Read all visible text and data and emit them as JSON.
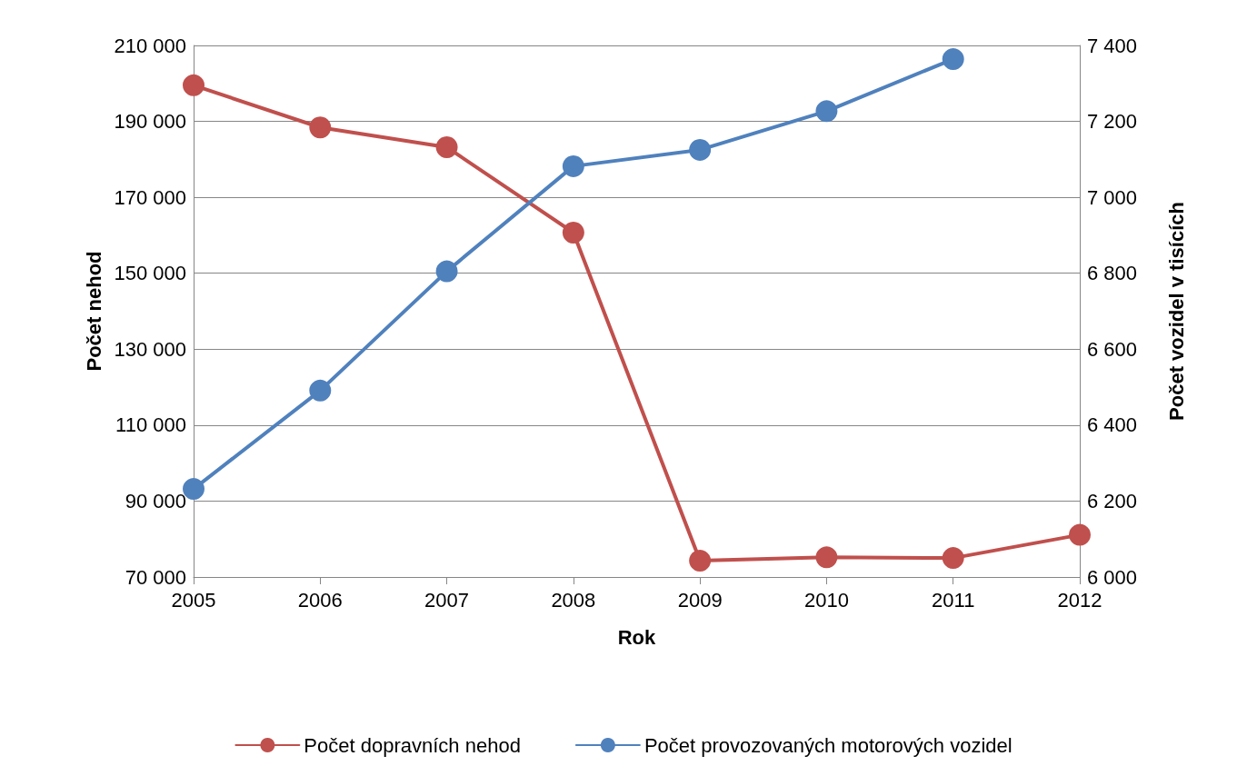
{
  "chart_data": {
    "type": "line",
    "xlabel": "Rok",
    "ylabel": "Počet nehod",
    "y2label": "Počet vozidel v tisících",
    "categories": [
      "2005",
      "2006",
      "2007",
      "2008",
      "2009",
      "2010",
      "2011",
      "2012"
    ],
    "series": [
      {
        "name": "Počet dopravních nehod",
        "color": "#c0504d",
        "values": [
          199500,
          188400,
          183200,
          160700,
          74300,
          75200,
          75000,
          81100
        ]
      },
      {
        "name": "Počet provozovaných motorových vozidel",
        "color": "#4f81bd",
        "axis": "y2",
        "values": [
          6232,
          6491,
          6805,
          7082,
          7125,
          7227,
          7364,
          null
        ]
      }
    ],
    "ylim": [
      70000,
      210000
    ],
    "yticks": [
      {
        "value": 70000,
        "label": "70 000"
      },
      {
        "value": 90000,
        "label": "90 000"
      },
      {
        "value": 110000,
        "label": "110 000"
      },
      {
        "value": 130000,
        "label": "130 000"
      },
      {
        "value": 150000,
        "label": "150 000"
      },
      {
        "value": 170000,
        "label": "170 000"
      },
      {
        "value": 190000,
        "label": "190 000"
      },
      {
        "value": 210000,
        "label": "210 000"
      }
    ],
    "y2lim": [
      6000,
      7400
    ],
    "y2ticks": [
      {
        "value": 6000,
        "label": "6 000"
      },
      {
        "value": 6200,
        "label": "6 200"
      },
      {
        "value": 6400,
        "label": "6 400"
      },
      {
        "value": 6600,
        "label": "6 600"
      },
      {
        "value": 6800,
        "label": "6 800"
      },
      {
        "value": 7000,
        "label": "7 000"
      },
      {
        "value": 7200,
        "label": "7 200"
      },
      {
        "value": 7400,
        "label": "7 400"
      }
    ],
    "grid": "y",
    "legend": "bottom",
    "marker": "circle",
    "line_style": "solid"
  }
}
